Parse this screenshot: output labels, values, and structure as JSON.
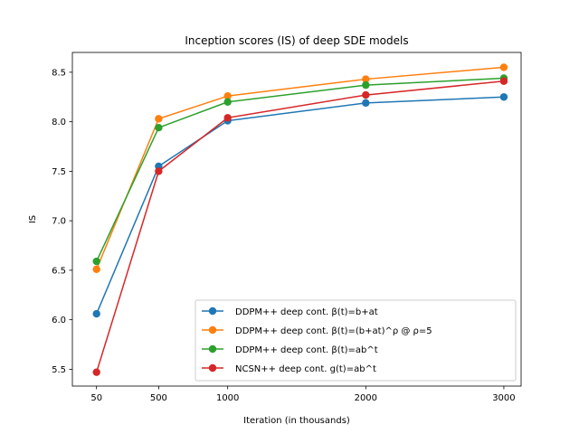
{
  "chart_data": {
    "type": "line",
    "title": "Inception scores (IS) of deep SDE models",
    "xlabel": "Iteration (in thousands)",
    "ylabel": "IS",
    "x": [
      50,
      500,
      1000,
      2000,
      3000
    ],
    "x_ticks": [
      50,
      500,
      1000,
      2000,
      3000
    ],
    "x_tick_labels": [
      "50",
      "500",
      "1000",
      "2000",
      "3000"
    ],
    "xlim": [
      -125,
      3125
    ],
    "y_ticks": [
      5.5,
      6.0,
      6.5,
      7.0,
      7.5,
      8.0,
      8.5
    ],
    "y_tick_labels": [
      "5.5",
      "6.0",
      "6.5",
      "7.0",
      "7.5",
      "8.0",
      "8.5"
    ],
    "ylim": [
      5.33,
      8.7
    ],
    "grid": false,
    "legend_position": "lower-right",
    "series": [
      {
        "name": "DDPM++ deep cont. β(t)=b+at",
        "color": "#1f77b4",
        "values": [
          6.06,
          7.55,
          8.01,
          8.19,
          8.25
        ]
      },
      {
        "name": "DDPM++ deep cont. β(t)=(b+at)^ρ @ ρ=5",
        "color": "#ff7f0e",
        "values": [
          6.51,
          8.03,
          8.26,
          8.43,
          8.55
        ]
      },
      {
        "name": "DDPM++ deep cont. β(t)=ab^t",
        "color": "#2ca02c",
        "values": [
          6.59,
          7.94,
          8.2,
          8.37,
          8.44
        ]
      },
      {
        "name": "NCSN++ deep cont. g(t)=ab^t",
        "color": "#d62728",
        "values": [
          5.47,
          7.5,
          8.04,
          8.27,
          8.41
        ]
      }
    ]
  }
}
